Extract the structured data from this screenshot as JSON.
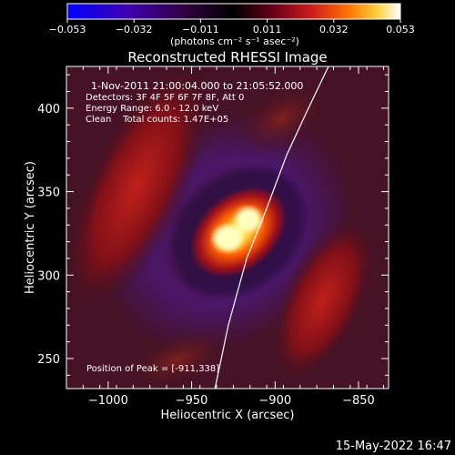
{
  "colorbar": {
    "ticks": [
      "−0.053",
      "−0.032",
      "−0.011",
      "0.011",
      "0.032",
      "0.053"
    ],
    "unit_label": "(photons cm⁻² s⁻¹ asec⁻²)",
    "range": [
      -0.053,
      0.053
    ],
    "colormap": [
      "#0000ff",
      "#3a00a0",
      "#1a001a",
      "#000000",
      "#5a0018",
      "#c0101a",
      "#ff5a00",
      "#ffb000",
      "#ffff80",
      "#ffffff"
    ]
  },
  "chart_data": {
    "type": "heatmap",
    "title": "Reconstructed RHESSI Image",
    "xlabel": "Heliocentric X (arcsec)",
    "ylabel": "Heliocentric Y (arcsec)",
    "xlim": [
      -1025,
      -832
    ],
    "ylim": [
      232,
      425
    ],
    "x_ticks": [
      -1000,
      -950,
      -900,
      -850
    ],
    "x_tick_labels": [
      "−1000",
      "−950",
      "−900",
      "−850"
    ],
    "y_ticks": [
      250,
      300,
      350,
      400
    ],
    "y_tick_labels": [
      "250",
      "300",
      "350",
      "400"
    ],
    "annotations": [
      "1-Nov-2011 21:00:04.000 to 21:05:52.000",
      "Detectors: 3F 4F 5F 6F 7F 8F, Att 0",
      "Energy Range: 6.0 - 12.0 keV",
      "Clean    Total counts: 1.47E+05"
    ],
    "peak_label": "Position of Peak = [-911,338]",
    "peak_position": [
      -911,
      338
    ],
    "limb_curve": [
      [
        -936,
        232
      ],
      [
        -928,
        270
      ],
      [
        -917,
        310
      ],
      [
        -905,
        340
      ],
      [
        -893,
        372
      ],
      [
        -880,
        400
      ],
      [
        -868,
        425
      ]
    ]
  },
  "footer": {
    "date": "15-May-2022 16:47"
  }
}
